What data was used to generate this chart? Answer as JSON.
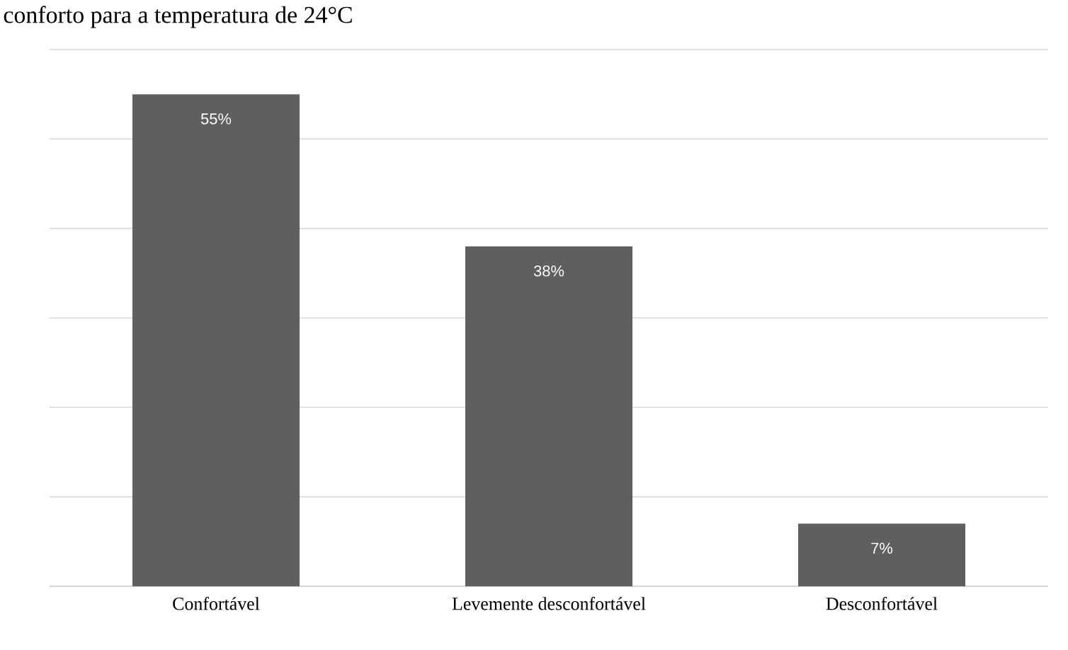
{
  "chart_data": {
    "type": "bar",
    "title": "conforto para a temperatura de 24°C",
    "categories": [
      "Confortável",
      "Levemente desconfortável",
      "Desconfortável"
    ],
    "values": [
      55,
      38,
      7
    ],
    "value_labels": [
      "55%",
      "38%",
      "7%"
    ],
    "color": "#5f5f5f",
    "ylim": [
      0,
      60
    ],
    "yticks": [
      {
        "value": 0,
        "label": null
      },
      {
        "value": 10,
        "label": null
      },
      {
        "value": 20,
        "label": null
      },
      {
        "value": 30,
        "label": null
      },
      {
        "value": 40,
        "label": null
      },
      {
        "value": 50,
        "label": null
      },
      {
        "value": 60,
        "label": null
      }
    ],
    "grid": "y"
  }
}
